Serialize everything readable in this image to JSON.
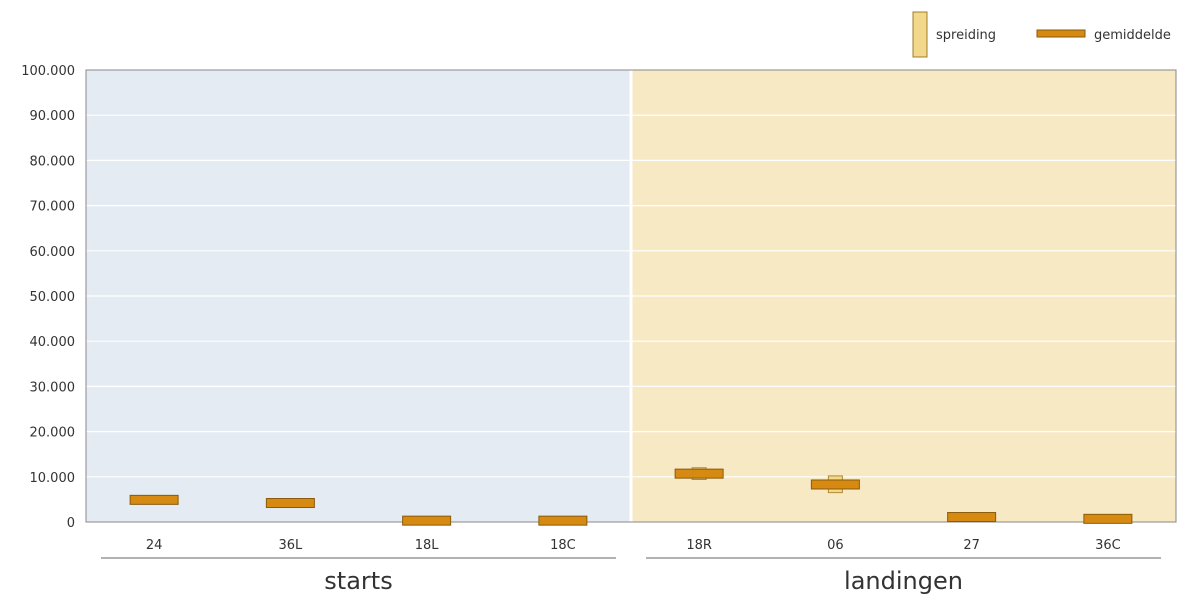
{
  "chart_data": {
    "type": "box",
    "categories": [
      "24",
      "36L",
      "18L",
      "18C",
      "18R",
      "06",
      "27",
      "36C"
    ],
    "groups": [
      {
        "label": "starts",
        "categories": [
          "24",
          "36L",
          "18L",
          "18C"
        ],
        "background": "#e4ebf3"
      },
      {
        "label": "landingen",
        "categories": [
          "18R",
          "06",
          "27",
          "36C"
        ],
        "background": "#f7e9c4"
      }
    ],
    "series": [
      {
        "name": "spreiding",
        "color": "#f2d88a",
        "ranges": [
          [
            4300,
            5500
          ],
          [
            3600,
            4800
          ],
          [
            0,
            600
          ],
          [
            0,
            600
          ],
          [
            9400,
            12000
          ],
          [
            6500,
            10200
          ],
          [
            700,
            1500
          ],
          [
            300,
            1100
          ]
        ]
      },
      {
        "name": "gemiddelde",
        "color": "#d68a12",
        "values": [
          4900,
          4200,
          300,
          300,
          10700,
          8300,
          1100,
          700
        ]
      }
    ],
    "ylim": [
      0,
      100000
    ],
    "yticks": [
      "0",
      "10.000",
      "20.000",
      "30.000",
      "40.000",
      "50.000",
      "60.000",
      "70.000",
      "80.000",
      "90.000",
      "100.000"
    ],
    "grid": true,
    "legend_position": "top-right",
    "title": "",
    "xlabel": "",
    "ylabel": ""
  },
  "legend": {
    "spread_label": "spreiding",
    "mean_label": "gemiddelde"
  }
}
